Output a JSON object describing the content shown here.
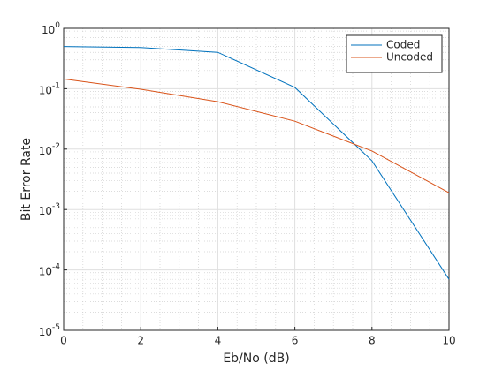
{
  "chart_data": {
    "type": "line",
    "xlabel": "Eb/No (dB)",
    "ylabel": "Bit Error Rate",
    "x": [
      0,
      2,
      4,
      6,
      8,
      10
    ],
    "series": [
      {
        "name": "Coded",
        "color": "#0072bd",
        "values": [
          0.5,
          0.48,
          0.4,
          0.105,
          0.0064,
          7e-05
        ]
      },
      {
        "name": "Uncoded",
        "color": "#d95319",
        "values": [
          0.145,
          0.098,
          0.061,
          0.029,
          0.0093,
          0.0019
        ]
      }
    ],
    "xlim": [
      0,
      10
    ],
    "xticks": [
      0,
      2,
      4,
      6,
      8,
      10
    ],
    "ylim": [
      1e-05,
      1
    ],
    "log_y": true,
    "yticks": [
      {
        "value": 1e-05,
        "label": "10^-5"
      },
      {
        "value": 0.0001,
        "label": "10^-4"
      },
      {
        "value": 0.001,
        "label": "10^-3"
      },
      {
        "value": 0.01,
        "label": "10^-2"
      },
      {
        "value": 0.1,
        "label": "10^-1"
      },
      {
        "value": 1,
        "label": "10^0"
      }
    ],
    "grid": true,
    "minor_grid": true,
    "legend_position": "northeast"
  }
}
